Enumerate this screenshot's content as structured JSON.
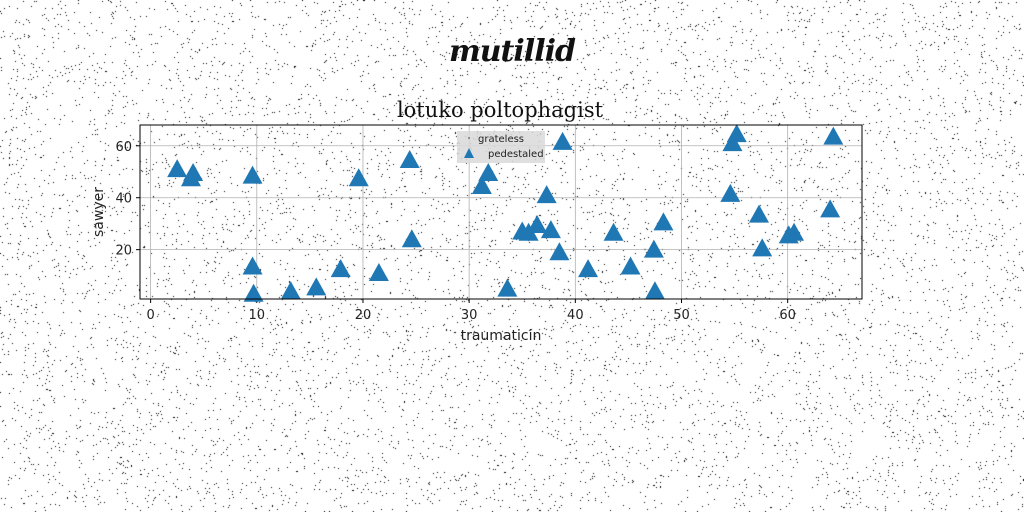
{
  "header": {
    "logo_text": "mutillid"
  },
  "chart_data": {
    "type": "scatter",
    "title": "lotuko poltophagist",
    "xlabel": "traumaticin",
    "ylabel": "sawyer",
    "xlim": [
      -1,
      67
    ],
    "ylim": [
      1,
      68
    ],
    "xticks": [
      0,
      10,
      20,
      30,
      40,
      50,
      60
    ],
    "yticks": [
      20,
      40,
      60
    ],
    "grid": true,
    "legend_position": "top-center",
    "series": [
      {
        "name": "grateless",
        "marker": "point",
        "color": "#555555",
        "points": []
      },
      {
        "name": "pedestaled",
        "marker": "triangle",
        "color": "#1f77b4",
        "points": [
          [
            2.5,
            51
          ],
          [
            3.8,
            47.5
          ],
          [
            4.0,
            49.5
          ],
          [
            9.6,
            48.5
          ],
          [
            9.6,
            13.5
          ],
          [
            9.7,
            3
          ],
          [
            13.2,
            4
          ],
          [
            15.6,
            5.5
          ],
          [
            17.9,
            12.5
          ],
          [
            19.6,
            47.5
          ],
          [
            21.5,
            11
          ],
          [
            24.4,
            54.5
          ],
          [
            24.6,
            24
          ],
          [
            31.2,
            44.5
          ],
          [
            31.8,
            49.5
          ],
          [
            33.6,
            5
          ],
          [
            35.0,
            27
          ],
          [
            35.6,
            26.5
          ],
          [
            36.4,
            29.5
          ],
          [
            37.3,
            41
          ],
          [
            37.7,
            27.5
          ],
          [
            38.5,
            19
          ],
          [
            38.8,
            61.5
          ],
          [
            41.2,
            12.5
          ],
          [
            43.6,
            26.5
          ],
          [
            45.2,
            13.5
          ],
          [
            47.4,
            20
          ],
          [
            47.5,
            4
          ],
          [
            48.3,
            30.5
          ],
          [
            54.6,
            41.5
          ],
          [
            54.8,
            61
          ],
          [
            55.2,
            64.5
          ],
          [
            57.3,
            33.5
          ],
          [
            57.6,
            20.5
          ],
          [
            60.1,
            25.5
          ],
          [
            60.6,
            26.5
          ],
          [
            64.0,
            35.5
          ],
          [
            64.3,
            63.5
          ]
        ]
      }
    ]
  }
}
